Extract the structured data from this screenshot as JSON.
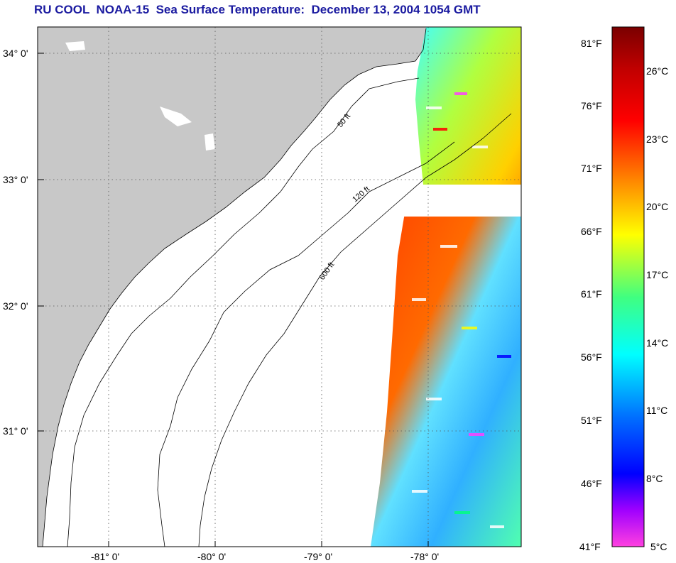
{
  "title": "RU COOL  NOAA-15  Sea Surface Temperature:  December 13, 2004 1054 GMT",
  "map": {
    "lat_labels": [
      "34° 0'",
      "33° 0'",
      "32° 0'",
      "31° 0'"
    ],
    "lon_labels": [
      "-81° 0'",
      "-80° 0'",
      "-79° 0'",
      "-78° 0'"
    ],
    "contours": [
      {
        "label": "50 ft"
      },
      {
        "label": "120 ft"
      },
      {
        "label": "600 ft"
      }
    ],
    "colors": {
      "land": "#c8c8c8",
      "ocean": "#ffffff",
      "grid": "#555555"
    }
  },
  "colorbar": {
    "fahrenheit": [
      "81°F",
      "76°F",
      "71°F",
      "66°F",
      "61°F",
      "56°F",
      "51°F",
      "46°F",
      "41°F"
    ],
    "celsius": [
      "26°C",
      "23°C",
      "20°C",
      "17°C",
      "14°C",
      "11°C",
      "8°C",
      "5°C"
    ],
    "gradient": [
      "#8b0000",
      "#ff0000",
      "#ff8000",
      "#ffff00",
      "#00ff80",
      "#00ffff",
      "#0080ff",
      "#0000ff",
      "#ff40ff"
    ]
  }
}
